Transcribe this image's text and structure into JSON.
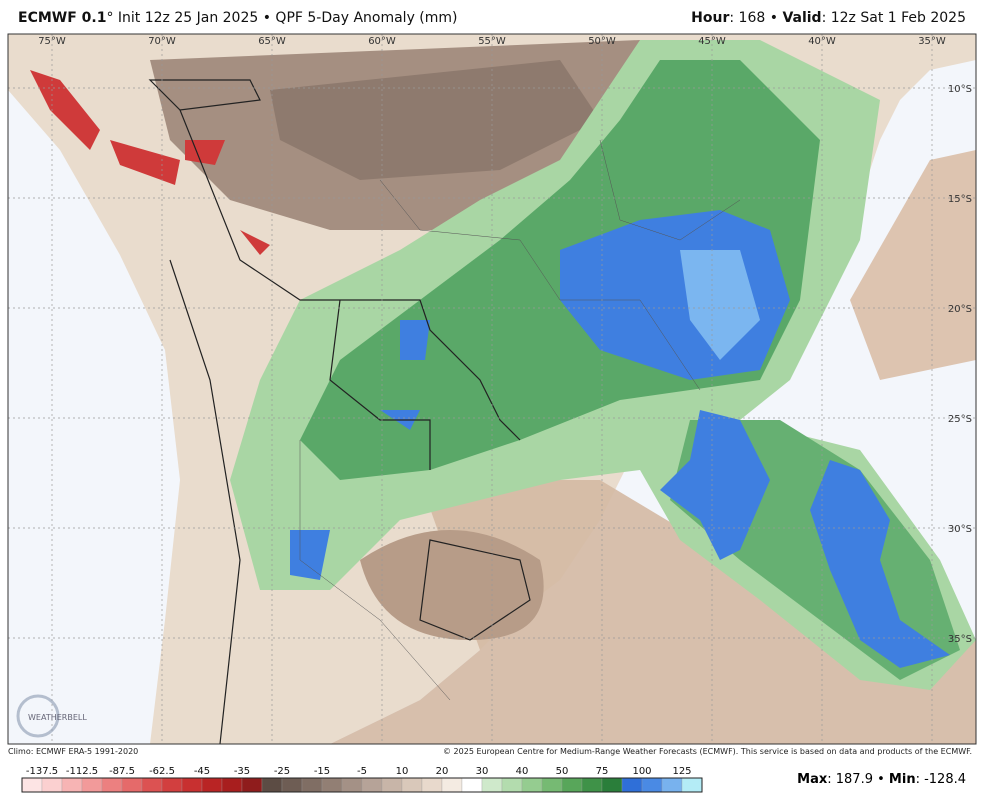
{
  "header": {
    "model": "ECMWF 0.1",
    "description": "° Init 12z 25 Jan 2025 • QPF 5-Day Anomaly (mm)",
    "hour_label": "Hour",
    "hour_value": ": 168 • ",
    "valid_label": "Valid",
    "valid_value": ": 12z Sat 1 Feb 2025"
  },
  "map": {
    "lon_labels": [
      "75°W",
      "70°W",
      "65°W",
      "60°W",
      "55°W",
      "50°W",
      "45°W",
      "40°W",
      "35°W"
    ],
    "lat_labels": [
      "10°S",
      "15°S",
      "20°S",
      "25°S",
      "30°S",
      "35°S"
    ]
  },
  "logo": "WEATHERBELL",
  "footer": {
    "climo": "Climo: ECMWF ERA-5 1991-2020",
    "copyright": "© 2025 European Centre for Medium-Range Weather Forecasts (ECMWF). This service is based on data and products of the ECMWF.",
    "max_label": "Max",
    "max_value": ": 187.9 • ",
    "min_label": "Min",
    "min_value": ": -128.4"
  },
  "colorbar": {
    "labels": [
      "-137.5",
      "-112.5",
      "-87.5",
      "-62.5",
      "-45",
      "-35",
      "-25",
      "-15",
      "-5",
      "10",
      "20",
      "30",
      "40",
      "50",
      "75",
      "100",
      "125"
    ]
  }
}
